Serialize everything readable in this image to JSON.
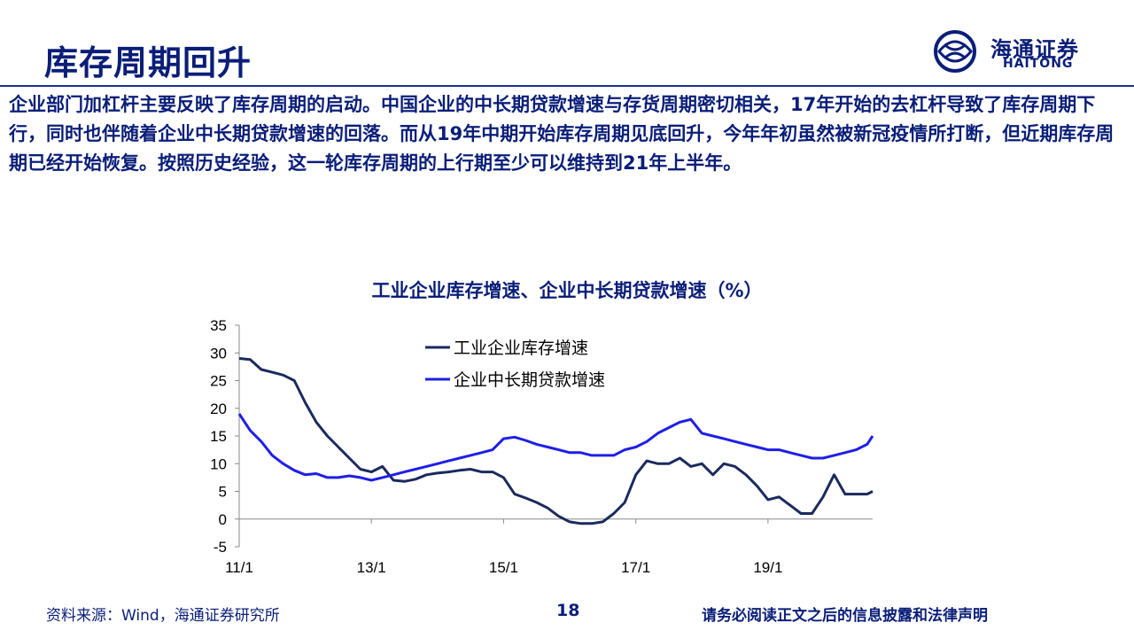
{
  "slide": {
    "title": "库存周期回升",
    "paragraph": "企业部门加杠杆主要反映了库存周期的启动。中国企业的中长期贷款增速与存货周期密切相关，17年开始的去杠杆导致了库存周期下行，同时也伴随着企业中长期贷款增速的回落。而从19年中期开始库存周期见底回升，今年年初虽然被新冠疫情所打断，但近期库存周期已经开始恢复。按照历史经验，这一轮库存周期的上行期至少可以维持到21年上半年。"
  },
  "logo": {
    "cn": "海通证券",
    "en": "HAITONG",
    "icon": "haitong-logo-icon"
  },
  "footer": {
    "source": "资料来源：Wind，海通证券研究所",
    "page": "18",
    "disclaimer": "请务必阅读正文之后的信息披露和法律声明"
  },
  "chart_data": {
    "type": "line",
    "title": "工业企业库存增速、企业中长期贷款增速（%）",
    "xlabel": "",
    "ylabel": "",
    "x_tick_labels": [
      "11/1",
      "13/1",
      "15/1",
      "17/1",
      "19/1"
    ],
    "y_tick_labels": [
      "35",
      "30",
      "25",
      "20",
      "15",
      "10",
      "5",
      "0",
      "-5"
    ],
    "ylim": [
      -5,
      35
    ],
    "x_range": [
      "2011-01",
      "2020-08"
    ],
    "grid": false,
    "legend_position": "top-left",
    "colors": {
      "inventory": "#1b2a5e",
      "loans": "#1f1fe6",
      "axis": "#888888",
      "text": "#0a1e78"
    },
    "series": [
      {
        "name": "工业企业库存增速",
        "x": [
          "2011-01",
          "2011-03",
          "2011-05",
          "2011-07",
          "2011-09",
          "2011-11",
          "2012-01",
          "2012-03",
          "2012-05",
          "2012-07",
          "2012-09",
          "2012-11",
          "2013-01",
          "2013-03",
          "2013-05",
          "2013-07",
          "2013-09",
          "2013-11",
          "2014-01",
          "2014-03",
          "2014-05",
          "2014-07",
          "2014-09",
          "2014-11",
          "2015-01",
          "2015-03",
          "2015-05",
          "2015-07",
          "2015-09",
          "2015-11",
          "2016-01",
          "2016-03",
          "2016-05",
          "2016-07",
          "2016-09",
          "2016-11",
          "2017-01",
          "2017-03",
          "2017-05",
          "2017-07",
          "2017-09",
          "2017-11",
          "2018-01",
          "2018-03",
          "2018-05",
          "2018-07",
          "2018-09",
          "2018-11",
          "2019-01",
          "2019-03",
          "2019-05",
          "2019-07",
          "2019-09",
          "2019-11",
          "2020-01",
          "2020-03",
          "2020-05",
          "2020-07",
          "2020-08"
        ],
        "values": [
          29,
          28.8,
          27,
          26.5,
          26,
          25,
          21,
          17.5,
          15,
          13,
          11,
          9,
          8.5,
          9.5,
          7,
          6.8,
          7.2,
          8,
          8.3,
          8.5,
          8.8,
          9,
          8.5,
          8.5,
          7.5,
          4.5,
          3.8,
          3,
          2,
          0.5,
          -0.5,
          -0.8,
          -0.8,
          -0.5,
          1,
          3,
          8,
          10.5,
          10,
          10,
          11,
          9.5,
          10,
          8,
          10,
          9.5,
          8,
          6,
          3.5,
          4,
          2.5,
          1,
          1,
          4,
          8,
          4.5,
          4.5,
          4.5,
          5
        ]
      },
      {
        "name": "企业中长期贷款增速",
        "x": [
          "2011-01",
          "2011-03",
          "2011-05",
          "2011-07",
          "2011-09",
          "2011-11",
          "2012-01",
          "2012-03",
          "2012-05",
          "2012-07",
          "2012-09",
          "2012-11",
          "2013-01",
          "2013-03",
          "2013-05",
          "2013-07",
          "2013-09",
          "2013-11",
          "2014-01",
          "2014-03",
          "2014-05",
          "2014-07",
          "2014-09",
          "2014-11",
          "2015-01",
          "2015-03",
          "2015-05",
          "2015-07",
          "2015-09",
          "2015-11",
          "2016-01",
          "2016-03",
          "2016-05",
          "2016-07",
          "2016-09",
          "2016-11",
          "2017-01",
          "2017-03",
          "2017-05",
          "2017-07",
          "2017-09",
          "2017-11",
          "2018-01",
          "2018-03",
          "2018-05",
          "2018-07",
          "2018-09",
          "2018-11",
          "2019-01",
          "2019-03",
          "2019-05",
          "2019-07",
          "2019-09",
          "2019-11",
          "2020-01",
          "2020-03",
          "2020-05",
          "2020-07",
          "2020-08"
        ],
        "values": [
          19,
          16,
          14,
          11.5,
          10,
          8.8,
          8,
          8.2,
          7.5,
          7.5,
          7.8,
          7.5,
          7,
          7.5,
          8,
          8.5,
          9,
          9.5,
          10,
          10.5,
          11,
          11.5,
          12,
          12.5,
          14.5,
          14.8,
          14.2,
          13.5,
          13,
          12.5,
          12,
          12,
          11.5,
          11.5,
          11.5,
          12.5,
          13,
          14,
          15.5,
          16.5,
          17.5,
          18,
          15.5,
          15,
          14.5,
          14,
          13.5,
          13,
          12.5,
          12.5,
          12,
          11.5,
          11,
          11,
          11.5,
          12,
          12.5,
          13.5,
          15
        ]
      }
    ]
  }
}
